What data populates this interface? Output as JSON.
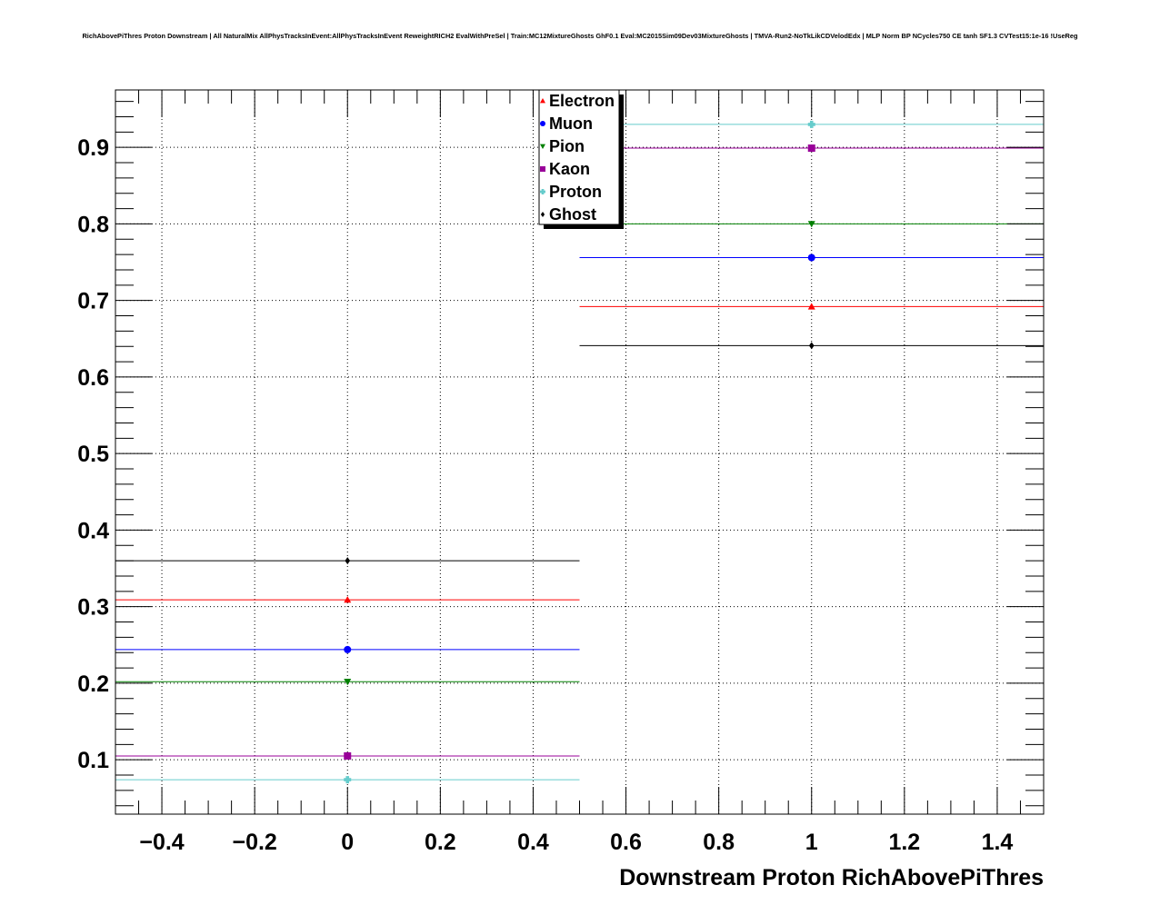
{
  "chart_data": {
    "type": "scatter",
    "title": "RichAbovePiThres Proton Downstream | All NaturalMix AllPhysTracksInEvent:AllPhysTracksInEvent ReweightRICH2 EvalWithPreSel | Train:MC12MixtureGhosts GhF0.1 Eval:MC2015Sim09Dev03MixtureGhosts | TMVA-Run2-NoTkLikCDVelodEdx | MLP Norm BP NCycles750 CE tanh SF1.3 CVTest15:1e-16 !UseReg",
    "xlabel": "Downstream Proton RichAbovePiThres",
    "ylabel": "",
    "xlim": [
      -0.5,
      1.5
    ],
    "ylim": [
      0.029,
      0.975
    ],
    "grid": true,
    "legend_position": "top-center",
    "x": [
      0,
      1
    ],
    "bin_edges": [
      [
        -0.5,
        0.5
      ],
      [
        0.5,
        1.5
      ]
    ],
    "x_ticks": [
      -0.4,
      -0.2,
      0,
      0.2,
      0.4,
      0.6,
      0.8,
      1,
      1.2,
      1.4
    ],
    "x_tick_labels": [
      "−0.4",
      "−0.2",
      "0",
      "0.2",
      "0.4",
      "0.6",
      "0.8",
      "1",
      "1.2",
      "1.4"
    ],
    "y_ticks": [
      0.1,
      0.2,
      0.3,
      0.4,
      0.5,
      0.6,
      0.7,
      0.8,
      0.9
    ],
    "y_tick_labels": [
      "0.1",
      "0.2",
      "0.3",
      "0.4",
      "0.5",
      "0.6",
      "0.7",
      "0.8",
      "0.9"
    ],
    "series": [
      {
        "name": "Electron",
        "color": "#ff0000",
        "marker": "triangle-up",
        "values": [
          0.309,
          0.692
        ]
      },
      {
        "name": "Muon",
        "color": "#0000ff",
        "marker": "circle",
        "values": [
          0.244,
          0.756
        ]
      },
      {
        "name": "Pion",
        "color": "#008000",
        "marker": "triangle-down",
        "values": [
          0.202,
          0.8
        ]
      },
      {
        "name": "Kaon",
        "color": "#990099",
        "marker": "square",
        "values": [
          0.105,
          0.899
        ]
      },
      {
        "name": "Proton",
        "color": "#66cccc",
        "marker": "cross",
        "values": [
          0.074,
          0.93
        ]
      },
      {
        "name": "Ghost",
        "color": "#000000",
        "marker": "diamond",
        "values": [
          0.36,
          0.641
        ]
      }
    ]
  }
}
